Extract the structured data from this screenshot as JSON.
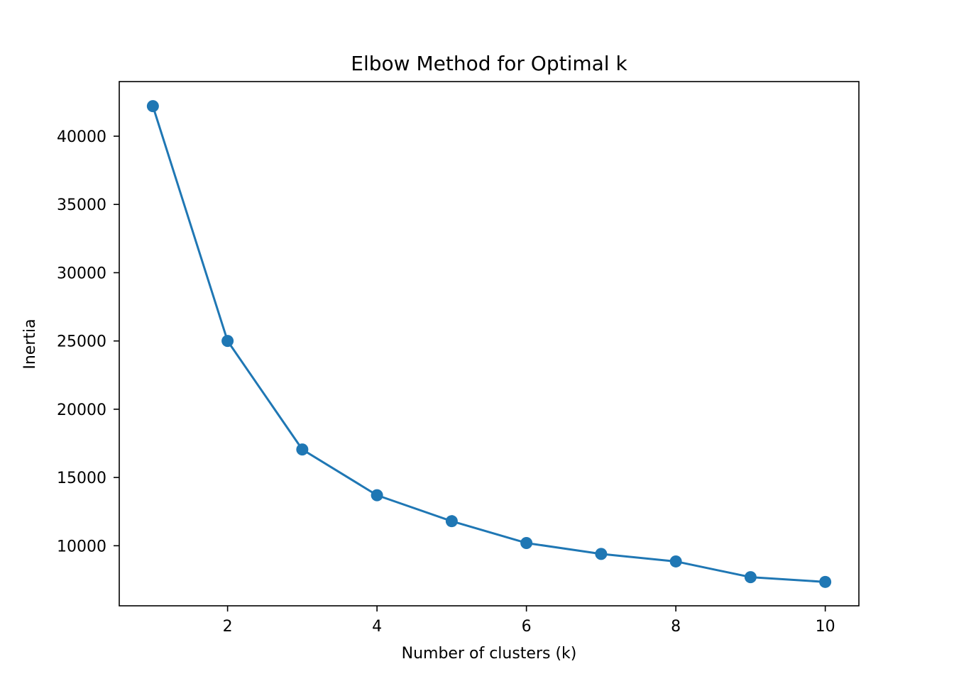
{
  "chart_data": {
    "type": "line",
    "title": "Elbow Method for Optimal k",
    "xlabel": "Number of clusters (k)",
    "ylabel": "Inertia",
    "x": [
      1,
      2,
      3,
      4,
      5,
      6,
      7,
      8,
      9,
      10
    ],
    "series": [
      {
        "values": [
          42200,
          25000,
          17050,
          13700,
          11800,
          10200,
          9400,
          8850,
          7700,
          7350
        ],
        "color": "#1f77b4",
        "marker": "circle"
      }
    ],
    "xlim": [
      0.55,
      10.45
    ],
    "ylim": [
      5600,
      44000
    ],
    "xticks": [
      2,
      4,
      6,
      8,
      10
    ],
    "xtick_labels": [
      "2",
      "4",
      "6",
      "8",
      "10"
    ],
    "yticks": [
      10000,
      15000,
      20000,
      25000,
      30000,
      35000,
      40000
    ],
    "ytick_labels": [
      "10000",
      "15000",
      "20000",
      "25000",
      "30000",
      "35000",
      "40000"
    ],
    "grid": false,
    "legend": false
  }
}
